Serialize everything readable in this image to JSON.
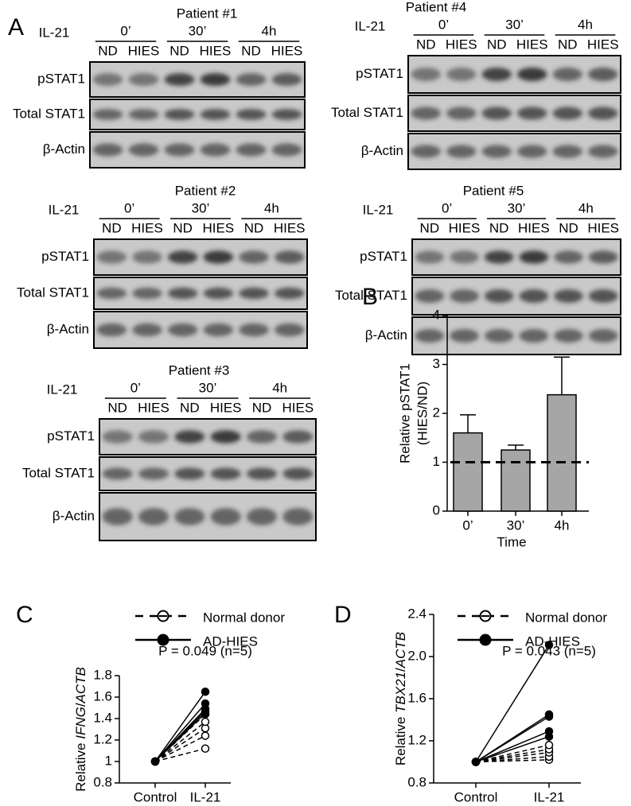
{
  "panel_A": "A",
  "blots": [
    {
      "title": "Patient #1",
      "stimulus": "IL-21",
      "times": [
        "0’",
        "30’",
        "4h"
      ],
      "lanes": [
        "ND",
        "HIES",
        "ND",
        "HIES",
        "ND",
        "HIES"
      ],
      "rows": [
        "pSTAT1",
        "Total STAT1",
        "β-Actin"
      ]
    },
    {
      "title": "Patient #4",
      "stimulus": "IL-21",
      "times": [
        "0’",
        "30’",
        "4h"
      ],
      "lanes": [
        "ND",
        "HIES",
        "ND",
        "HIES",
        "ND",
        "HIES"
      ],
      "rows": [
        "pSTAT1",
        "Total STAT1",
        "β-Actin"
      ]
    },
    {
      "title": "Patient #2",
      "stimulus": "IL-21",
      "times": [
        "0’",
        "30’",
        "4h"
      ],
      "lanes": [
        "ND",
        "HIES",
        "ND",
        "HIES",
        "ND",
        "HIES"
      ],
      "rows": [
        "pSTAT1",
        "Total STAT1",
        "β-Actin"
      ]
    },
    {
      "title": "Patient #5",
      "stimulus": "IL-21",
      "times": [
        "0’",
        "30’",
        "4h"
      ],
      "lanes": [
        "ND",
        "HIES",
        "ND",
        "HIES",
        "ND",
        "HIES"
      ],
      "rows": [
        "pSTAT1",
        "Total STAT1",
        "β-Actin"
      ]
    },
    {
      "title": "Patient #3",
      "stimulus": "IL-21",
      "times": [
        "0’",
        "30’",
        "4h"
      ],
      "lanes": [
        "ND",
        "HIES",
        "ND",
        "HIES",
        "ND",
        "HIES"
      ],
      "rows": [
        "pSTAT1",
        "Total STAT1",
        "β-Actin"
      ]
    }
  ],
  "chart_data": [
    {
      "type": "bar",
      "panel": "B",
      "categories": [
        "0’",
        "30’",
        "4h"
      ],
      "values": [
        1.6,
        1.25,
        2.38
      ],
      "errors": [
        0.37,
        0.1,
        0.77
      ],
      "color": "#a6a6a6",
      "ylim": [
        0,
        4
      ],
      "yticks": [
        0,
        1,
        2,
        3,
        4
      ],
      "ylabel": [
        "Relative pSTAT1",
        "(HIES/ND)"
      ],
      "xlabel": "Time",
      "reference_line": 1
    },
    {
      "type": "line",
      "panel": "C",
      "categories": [
        "Control",
        "IL-21"
      ],
      "ylabel": [
        "Relative ",
        "IFNG",
        "/",
        "ACTB"
      ],
      "annotation": "P = 0.049 (n=5)",
      "ylim": [
        0.8,
        1.8
      ],
      "yticks": [
        0.8,
        1,
        1.2,
        1.4,
        1.6,
        1.8
      ],
      "series": [
        {
          "name": "Normal donor",
          "style": "dashed",
          "values": [
            [
              1,
              1.12
            ],
            [
              1,
              1.24
            ],
            [
              1,
              1.31
            ],
            [
              1,
              1.37
            ],
            [
              1,
              1.44
            ]
          ]
        },
        {
          "name": "AD-HIES",
          "style": "solid",
          "values": [
            [
              1,
              1.65
            ],
            [
              1,
              1.54
            ],
            [
              1,
              1.49
            ],
            [
              1,
              1.47
            ],
            [
              1,
              1.45
            ]
          ]
        }
      ]
    },
    {
      "type": "line",
      "panel": "D",
      "categories": [
        "Control",
        "IL-21"
      ],
      "ylabel": [
        "Relative ",
        "TBX21",
        "/",
        "ACTB"
      ],
      "annotation": "P = 0.043 (n=5)",
      "ylim": [
        0.8,
        2.4
      ],
      "yticks": [
        0.8,
        1.2,
        1.6,
        {
          "value": 2,
          "label": "2.0"
        },
        2.4
      ],
      "series": [
        {
          "name": "Normal donor",
          "style": "dashed",
          "values": [
            [
              1,
              1.02
            ],
            [
              1,
              1.05
            ],
            [
              1,
              1.09
            ],
            [
              1,
              1.12
            ],
            [
              1,
              1.16
            ]
          ]
        },
        {
          "name": "AD-HIES",
          "style": "solid",
          "values": [
            [
              1,
              2.11
            ],
            [
              1,
              1.45
            ],
            [
              1,
              1.43
            ],
            [
              1,
              1.29
            ],
            [
              1,
              1.24
            ]
          ]
        }
      ]
    }
  ]
}
